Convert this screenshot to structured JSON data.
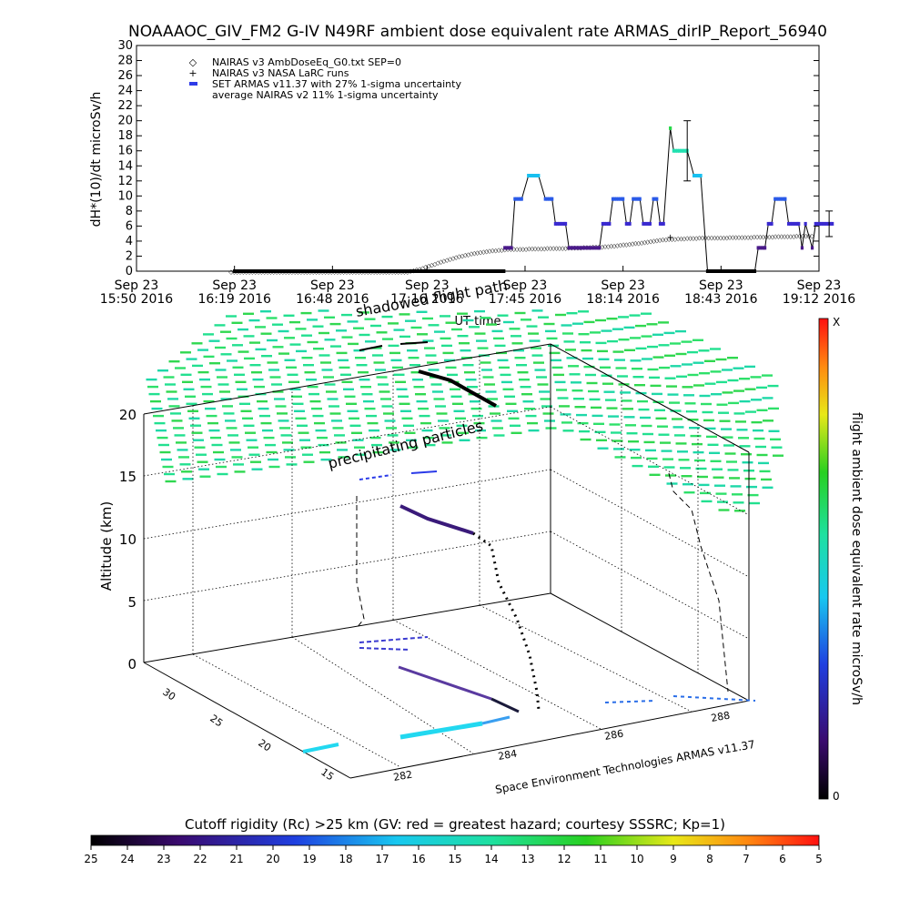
{
  "title": "NOAAAOC_GIV_FM2 G-IV    N49RF   ambient dose equivalent rate ARMAS_dirIP_Report_56940",
  "chart_data": [
    {
      "type": "scatter",
      "ylabel": "dH*(10)/dt microSv/h",
      "xlabel": "UT time",
      "ylim": [
        0,
        30
      ],
      "yticks": [
        0,
        2,
        4,
        6,
        8,
        10,
        12,
        14,
        16,
        18,
        20,
        22,
        24,
        26,
        28,
        30
      ],
      "xlim_minutes": [
        950,
        1152
      ],
      "xticks": [
        {
          "t": 950,
          "l1": "Sep 23",
          "l2": "15:50 2016"
        },
        {
          "t": 979,
          "l1": "Sep 23",
          "l2": "16:19 2016"
        },
        {
          "t": 1008,
          "l1": "Sep 23",
          "l2": "16:48 2016"
        },
        {
          "t": 1036,
          "l1": "Sep 23",
          "l2": "17:16 2016"
        },
        {
          "t": 1065,
          "l1": "Sep 23",
          "l2": "17:45 2016"
        },
        {
          "t": 1094,
          "l1": "Sep 23",
          "l2": "18:14 2016"
        },
        {
          "t": 1123,
          "l1": "Sep 23",
          "l2": "18:43 2016"
        },
        {
          "t": 1152,
          "l1": "Sep 23",
          "l2": "19:12 2016"
        }
      ],
      "legend": [
        {
          "label": "NAIRAS v3 AmbDoseEq_G0.txt SEP=0",
          "marker": "diamond"
        },
        {
          "label": "NAIRAS v3 NASA LaRC runs",
          "marker": "plus"
        },
        {
          "label": "SET ARMAS v11.37 with 27% 1-sigma uncertainty",
          "marker": "blue-dash"
        },
        {
          "label": "average NAIRAS v2 11% 1-sigma uncertainty",
          "marker": "none"
        }
      ],
      "series": [
        {
          "name": "NAIRAS v3 AmbDoseEq_G0.txt SEP=0",
          "points": [
            [
              978,
              0
            ],
            [
              1030,
              0
            ],
            [
              1034,
              0.4
            ],
            [
              1038,
              1.0
            ],
            [
              1042,
              1.6
            ],
            [
              1046,
              2.1
            ],
            [
              1050,
              2.5
            ],
            [
              1055,
              2.8
            ],
            [
              1060,
              3.0
            ],
            [
              1070,
              3.1
            ],
            [
              1080,
              3.2
            ],
            [
              1090,
              3.4
            ],
            [
              1098,
              3.8
            ],
            [
              1106,
              4.3
            ],
            [
              1115,
              4.5
            ],
            [
              1130,
              4.6
            ],
            [
              1140,
              4.7
            ],
            [
              1150,
              4.8
            ]
          ]
        },
        {
          "name": "SET ARMAS v11.37 with 27% 1-sigma uncertainty",
          "points": [
            [
              1059,
              3.1
            ],
            [
              1061,
              3.1
            ],
            [
              1062,
              9.6
            ],
            [
              1064,
              9.6
            ],
            [
              1066,
              12.7
            ],
            [
              1069,
              12.7
            ],
            [
              1071,
              9.6
            ],
            [
              1073,
              9.6
            ],
            [
              1074,
              6.3
            ],
            [
              1077,
              6.3
            ],
            [
              1078,
              3.1
            ],
            [
              1087,
              3.1
            ],
            [
              1088,
              6.3
            ],
            [
              1090,
              6.3
            ],
            [
              1091,
              9.6
            ],
            [
              1094,
              9.6
            ],
            [
              1095,
              6.3
            ],
            [
              1096,
              6.3
            ],
            [
              1097,
              9.6
            ],
            [
              1099,
              9.6
            ],
            [
              1100,
              6.3
            ],
            [
              1102,
              6.3
            ],
            [
              1103,
              9.6
            ],
            [
              1104,
              9.6
            ],
            [
              1105,
              6.3
            ],
            [
              1106,
              6.3
            ],
            [
              1108,
              19.0
            ],
            [
              1109,
              16.0
            ],
            [
              1113,
              16.0
            ],
            [
              1115,
              12.7
            ],
            [
              1117,
              12.7
            ],
            [
              1119,
              0
            ],
            [
              1133,
              0
            ],
            [
              1134,
              3.1
            ],
            [
              1136,
              3.1
            ],
            [
              1137,
              6.3
            ],
            [
              1138,
              6.3
            ],
            [
              1139,
              9.6
            ],
            [
              1142,
              9.6
            ],
            [
              1143,
              6.3
            ],
            [
              1146,
              6.3
            ],
            [
              1147,
              3.1
            ],
            [
              1148,
              6.3
            ],
            [
              1150,
              3.1
            ],
            [
              1151,
              6.3
            ],
            [
              1156,
              6.3
            ]
          ]
        }
      ],
      "error_bars": [
        [
          1113,
          16.0,
          20.0,
          12.0
        ],
        [
          1155,
          6.3,
          8.0,
          4.6
        ]
      ]
    },
    {
      "type": "3d-trajectory",
      "zlabel": "Altitude (km)",
      "zticks": [
        "0",
        "5",
        "10",
        "15",
        "20"
      ],
      "lat_ticks": [
        "15",
        "20",
        "25",
        "30"
      ],
      "lon_ticks": [
        "282",
        "284",
        "286",
        "288"
      ],
      "annotations": [
        "shadowed flight path",
        "precipitating particles"
      ],
      "credit": "Space Environment Technologies ARMAS v11.37",
      "colorbar": {
        "title": "flight ambient dose equivalent rate microSv/h",
        "top_label": "X",
        "bottom_label": "0"
      }
    }
  ],
  "rigidity_bar": {
    "title": "Cutoff rigidity (Rc) >25 km (GV: red = greatest hazard; courtesy SSSRC; Kp=1)",
    "ticks": [
      "25",
      "24",
      "23",
      "22",
      "21",
      "20",
      "19",
      "18",
      "17",
      "16",
      "15",
      "14",
      "13",
      "12",
      "11",
      "10",
      "9",
      "8",
      "7",
      "6",
      "5"
    ]
  },
  "colors": {
    "armas": "#2e3be8",
    "grid": "#000000",
    "alt_cloud": "#33dd88"
  }
}
